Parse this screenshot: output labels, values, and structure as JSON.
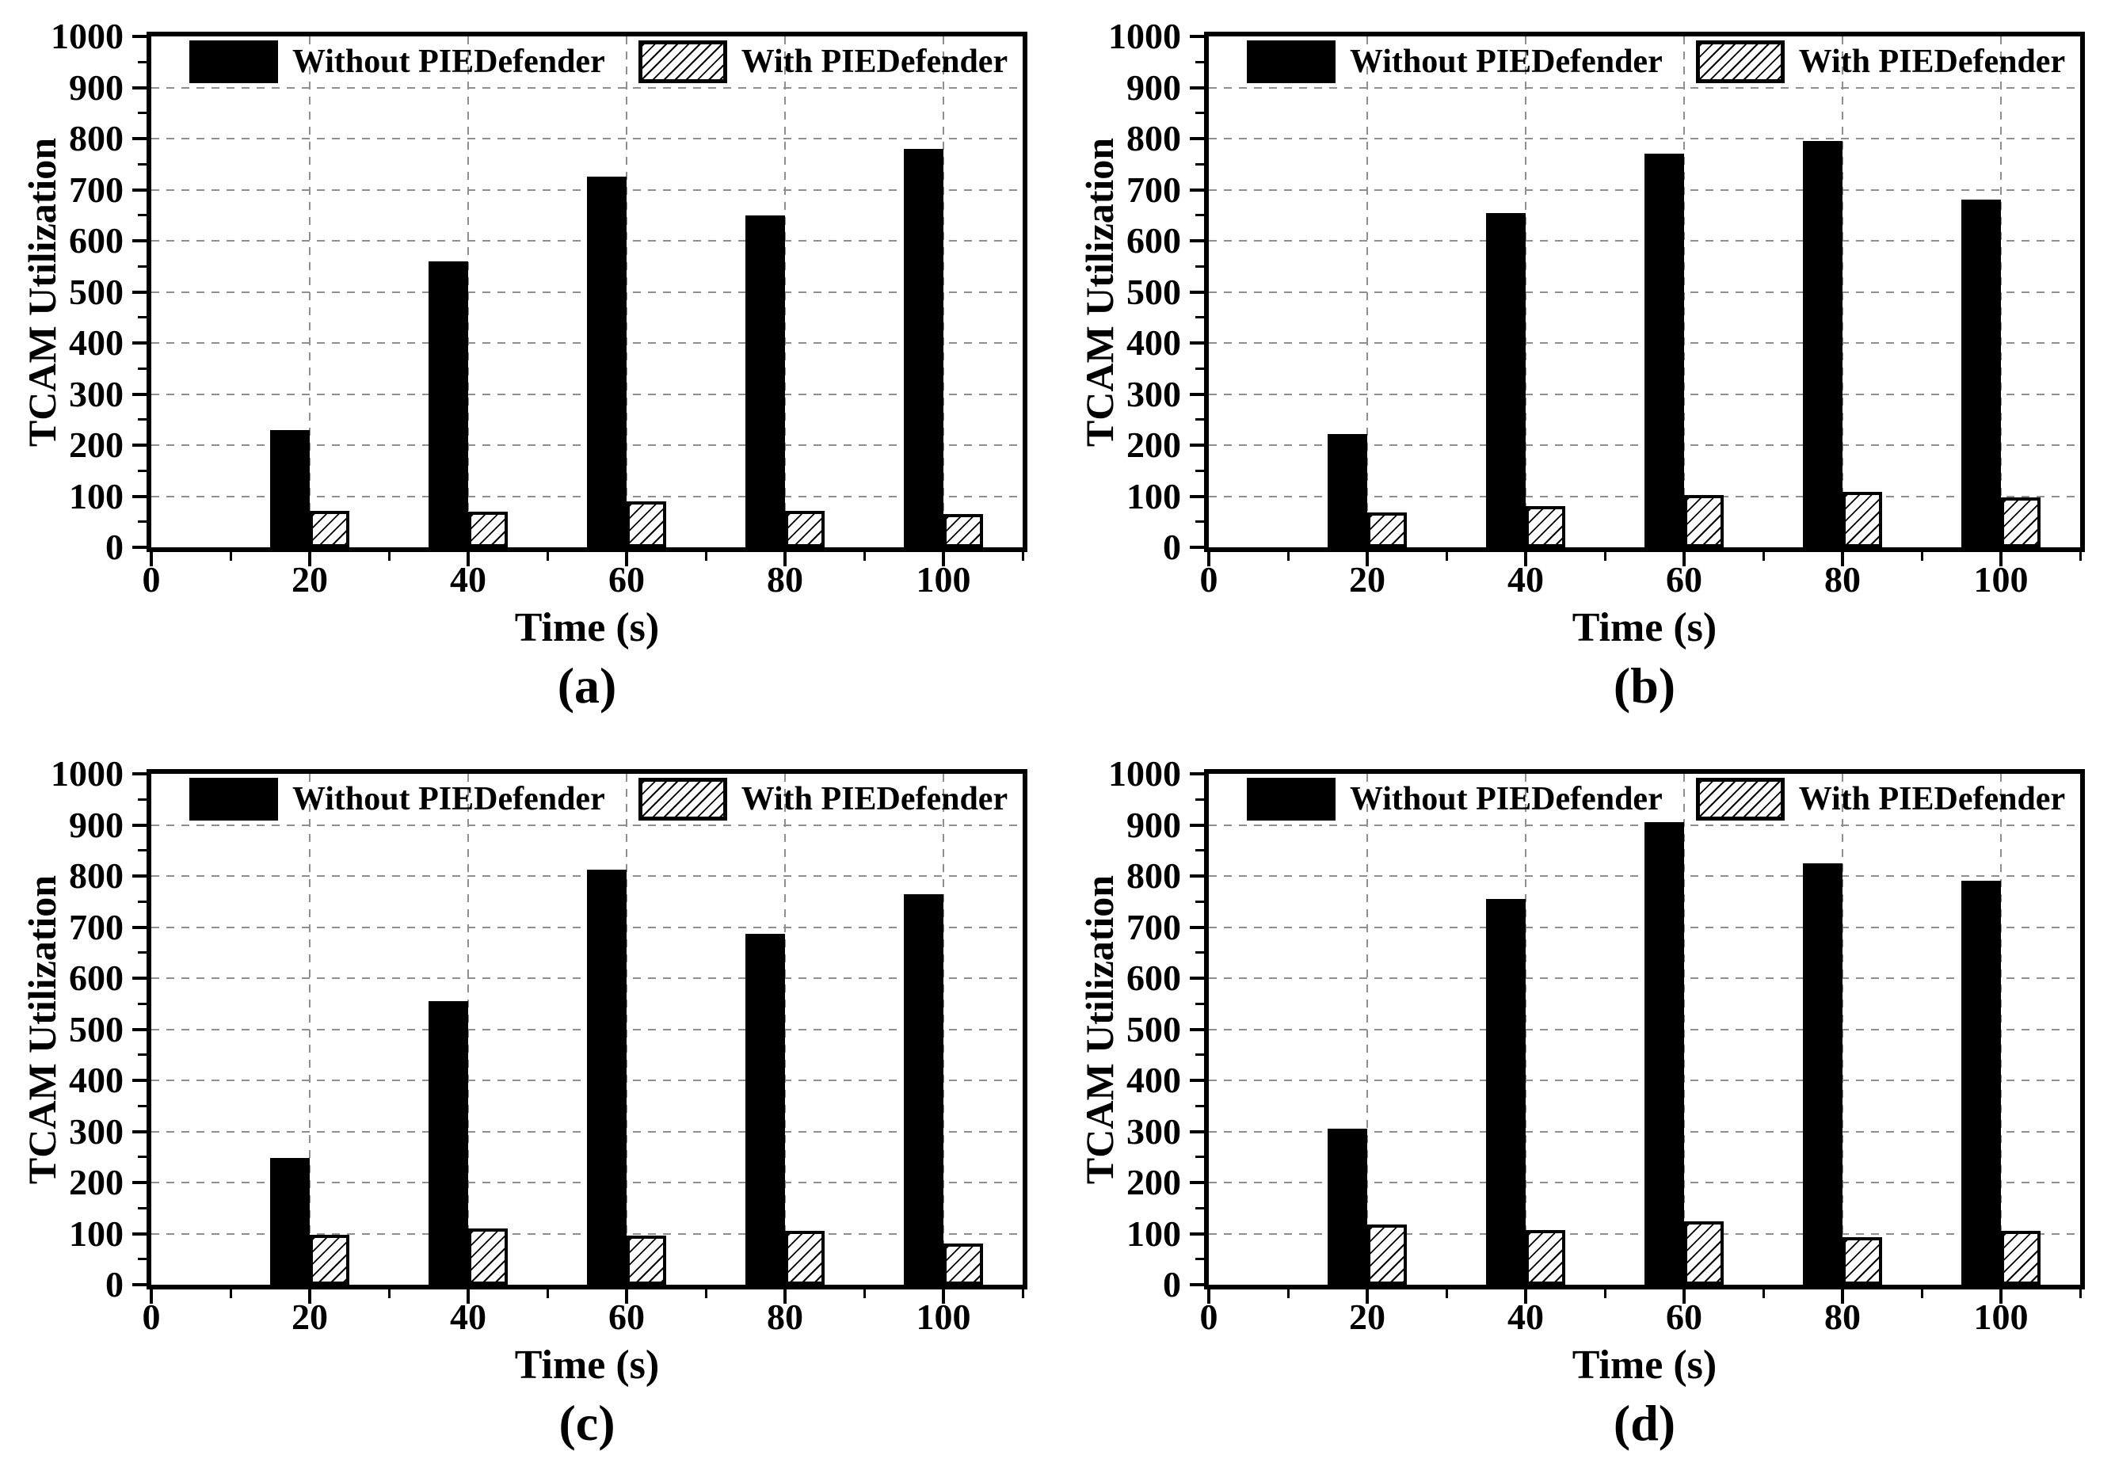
{
  "figure": {
    "description": "Four-panel bar chart figure comparing TCAM Utilization over time with and without PIEDefender",
    "legend": {
      "without_label": "Without PIEDefender",
      "with_label": "With PIEDefender"
    },
    "colors": {
      "bar_solid": "#000000",
      "bar_hatch_line": "#000000",
      "bar_hatch_bg": "#ffffff",
      "gridline": "#8f8f8f",
      "axis": "#000000",
      "background": "#ffffff"
    }
  },
  "chart_data": [
    {
      "type": "bar",
      "panel_label": "(a)",
      "xlabel": "Time (s)",
      "ylabel": "TCAM Utilization",
      "xlim": [
        0,
        110
      ],
      "ylim": [
        0,
        1000
      ],
      "xticks": [
        0,
        20,
        40,
        60,
        80,
        100
      ],
      "yticks": [
        0,
        100,
        200,
        300,
        400,
        500,
        600,
        700,
        800,
        900,
        1000
      ],
      "grid": true,
      "legend_position": "top-inside",
      "categories": [
        20,
        40,
        60,
        80,
        100
      ],
      "series": [
        {
          "name": "Without PIEDefender",
          "style": "solid-black",
          "values": [
            230,
            560,
            725,
            650,
            780
          ]
        },
        {
          "name": "With PIEDefender",
          "style": "hatched",
          "values": [
            72,
            70,
            90,
            72,
            65
          ]
        }
      ]
    },
    {
      "type": "bar",
      "panel_label": "(b)",
      "xlabel": "Time (s)",
      "ylabel": "TCAM Utilization",
      "xlim": [
        0,
        110
      ],
      "ylim": [
        0,
        1000
      ],
      "xticks": [
        0,
        20,
        40,
        60,
        80,
        100
      ],
      "yticks": [
        0,
        100,
        200,
        300,
        400,
        500,
        600,
        700,
        800,
        900,
        1000
      ],
      "grid": true,
      "legend_position": "top-inside",
      "categories": [
        20,
        40,
        60,
        80,
        100
      ],
      "series": [
        {
          "name": "Without PIEDefender",
          "style": "solid-black",
          "values": [
            222,
            655,
            770,
            795,
            680
          ]
        },
        {
          "name": "With PIEDefender",
          "style": "hatched",
          "values": [
            68,
            80,
            102,
            108,
            98
          ]
        }
      ]
    },
    {
      "type": "bar",
      "panel_label": "(c)",
      "xlabel": "Time (s)",
      "ylabel": "TCAM Utilization",
      "xlim": [
        0,
        110
      ],
      "ylim": [
        0,
        1000
      ],
      "xticks": [
        0,
        20,
        40,
        60,
        80,
        100
      ],
      "yticks": [
        0,
        100,
        200,
        300,
        400,
        500,
        600,
        700,
        800,
        900,
        1000
      ],
      "grid": true,
      "legend_position": "top-inside",
      "categories": [
        20,
        40,
        60,
        80,
        100
      ],
      "series": [
        {
          "name": "Without PIEDefender",
          "style": "solid-black",
          "values": [
            248,
            555,
            812,
            687,
            765
          ]
        },
        {
          "name": "With PIEDefender",
          "style": "hatched",
          "values": [
            97,
            110,
            96,
            105,
            80
          ]
        }
      ]
    },
    {
      "type": "bar",
      "panel_label": "(d)",
      "xlabel": "Time (s)",
      "ylabel": "TCAM Utilization",
      "xlim": [
        0,
        110
      ],
      "ylim": [
        0,
        1000
      ],
      "xticks": [
        0,
        20,
        40,
        60,
        80,
        100
      ],
      "yticks": [
        0,
        100,
        200,
        300,
        400,
        500,
        600,
        700,
        800,
        900,
        1000
      ],
      "grid": true,
      "legend_position": "top-inside",
      "categories": [
        20,
        40,
        60,
        80,
        100
      ],
      "series": [
        {
          "name": "Without PIEDefender",
          "style": "solid-black",
          "values": [
            306,
            755,
            905,
            825,
            790
          ]
        },
        {
          "name": "With PIEDefender",
          "style": "hatched",
          "values": [
            118,
            107,
            124,
            93,
            105
          ]
        }
      ]
    }
  ]
}
